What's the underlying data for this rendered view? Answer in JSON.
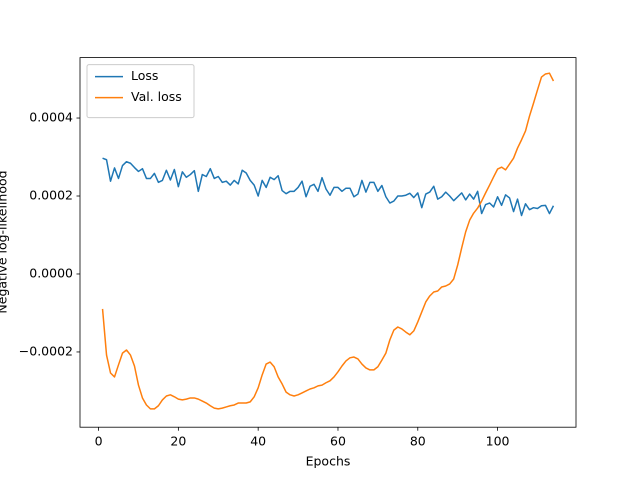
{
  "chart_data": {
    "type": "line",
    "xlabel": "Epochs",
    "ylabel": "Negative log-likelihood",
    "x": [
      1,
      2,
      3,
      4,
      5,
      6,
      7,
      8,
      9,
      10,
      11,
      12,
      13,
      14,
      15,
      16,
      17,
      18,
      19,
      20,
      21,
      22,
      23,
      24,
      25,
      26,
      27,
      28,
      29,
      30,
      31,
      32,
      33,
      34,
      35,
      36,
      37,
      38,
      39,
      40,
      41,
      42,
      43,
      44,
      45,
      46,
      47,
      48,
      49,
      50,
      51,
      52,
      53,
      54,
      55,
      56,
      57,
      58,
      59,
      60,
      61,
      62,
      63,
      64,
      65,
      66,
      67,
      68,
      69,
      70,
      71,
      72,
      73,
      74,
      75,
      76,
      77,
      78,
      79,
      80,
      81,
      82,
      83,
      84,
      85,
      86,
      87,
      88,
      89,
      90,
      91,
      92,
      93,
      94,
      95,
      96,
      97,
      98,
      99,
      100,
      101,
      102,
      103,
      104,
      105,
      106,
      107,
      108,
      109,
      110,
      111,
      112,
      113,
      114
    ],
    "series": [
      {
        "name": "Loss",
        "color": "#1f77b4",
        "values": [
          0.000297,
          0.000293,
          0.000238,
          0.000272,
          0.000245,
          0.000278,
          0.000288,
          0.000284,
          0.000273,
          0.000263,
          0.00027,
          0.000245,
          0.000245,
          0.000258,
          0.000235,
          0.00024,
          0.000266,
          0.000241,
          0.000268,
          0.000224,
          0.000262,
          0.000248,
          0.000255,
          0.000265,
          0.000212,
          0.000255,
          0.00025,
          0.00027,
          0.000245,
          0.00025,
          0.000235,
          0.000238,
          0.000228,
          0.00024,
          0.000231,
          0.000266,
          0.000259,
          0.00024,
          0.000228,
          0.0002,
          0.00024,
          0.000222,
          0.000248,
          0.000242,
          0.000252,
          0.000214,
          0.000206,
          0.000212,
          0.000212,
          0.000222,
          0.000238,
          0.000198,
          0.000225,
          0.00023,
          0.000212,
          0.000247,
          0.000218,
          0.000202,
          0.000222,
          0.000222,
          0.000212,
          0.00022,
          0.00022,
          0.000198,
          0.000205,
          0.00024,
          0.00021,
          0.000235,
          0.000235,
          0.000212,
          0.000227,
          0.000198,
          0.000182,
          0.000187,
          0.0002,
          0.0002,
          0.000202,
          0.000207,
          0.000196,
          0.000208,
          0.00017,
          0.000205,
          0.00021,
          0.000225,
          0.000192,
          0.000198,
          0.00021,
          0.0002,
          0.000188,
          0.000198,
          0.000208,
          0.00019,
          0.000205,
          0.000192,
          0.000212,
          0.000155,
          0.000178,
          0.000182,
          0.000172,
          0.000198,
          0.000176,
          0.000203,
          0.000195,
          0.00016,
          0.000192,
          0.00015,
          0.00018,
          0.000165,
          0.00017,
          0.000168,
          0.000175,
          0.000176,
          0.000155,
          0.000175
        ]
      },
      {
        "name": "Val. loss",
        "color": "#ff7f0e",
        "values": [
          -8.97e-05,
          -0.000208,
          -0.000254,
          -0.000264,
          -0.000233,
          -0.000203,
          -0.000195,
          -0.000208,
          -0.000236,
          -0.000285,
          -0.000318,
          -0.000336,
          -0.000346,
          -0.000346,
          -0.000338,
          -0.000323,
          -0.000313,
          -0.00031,
          -0.000315,
          -0.000321,
          -0.000323,
          -0.000321,
          -0.000318,
          -0.000318,
          -0.000321,
          -0.000326,
          -0.000331,
          -0.000338,
          -0.000344,
          -0.000346,
          -0.000344,
          -0.000341,
          -0.000338,
          -0.000336,
          -0.000331,
          -0.000331,
          -0.000331,
          -0.000328,
          -0.000315,
          -0.000292,
          -0.000259,
          -0.000231,
          -0.000226,
          -0.000238,
          -0.000264,
          -0.000282,
          -0.000303,
          -0.00031,
          -0.000313,
          -0.00031,
          -0.000305,
          -0.0003,
          -0.000295,
          -0.000292,
          -0.000287,
          -0.000285,
          -0.000279,
          -0.000274,
          -0.000264,
          -0.000251,
          -0.000236,
          -0.000223,
          -0.000215,
          -0.000213,
          -0.000218,
          -0.000231,
          -0.000241,
          -0.000246,
          -0.000246,
          -0.000238,
          -0.000221,
          -0.000203,
          -0.000169,
          -0.000144,
          -0.000136,
          -0.000141,
          -0.000149,
          -0.000156,
          -0.000146,
          -0.000123,
          -9.74e-05,
          -7.18e-05,
          -5.64e-05,
          -4.62e-05,
          -4.36e-05,
          -3.33e-05,
          -3.08e-05,
          -2.56e-05,
          -1.28e-05,
          2.31e-05,
          6.67e-05,
          0.000108,
          0.000138,
          0.000156,
          0.000169,
          0.000187,
          0.000208,
          0.000228,
          0.000249,
          0.000269,
          0.000274,
          0.000267,
          0.000282,
          0.000297,
          0.000323,
          0.000344,
          0.000367,
          0.000405,
          0.000438,
          0.000472,
          0.000505,
          0.000513,
          0.000515,
          0.000495
        ]
      }
    ],
    "xlim": [
      -4.65,
      119.65
    ],
    "xticks": [
      0,
      20,
      40,
      60,
      80,
      100
    ],
    "ylim": [
      -0.000393,
      0.000555
    ],
    "yticks": [
      {
        "value": -0.0002,
        "label": "−0.0002"
      },
      {
        "value": 0,
        "label": "0.0000"
      },
      {
        "value": 0.0002,
        "label": "0.0002"
      },
      {
        "value": 0.0004,
        "label": "0.0004"
      }
    ],
    "legend": "upper left",
    "grid": false
  }
}
